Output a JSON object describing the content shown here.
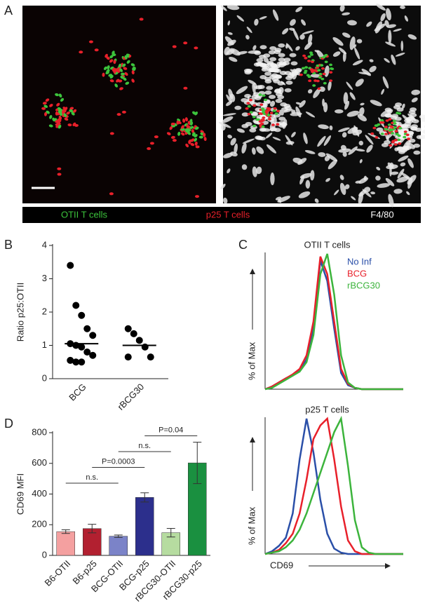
{
  "panel_labels": [
    "A",
    "B",
    "C",
    "D"
  ],
  "panel_a": {
    "legend": [
      {
        "text": "OTII T cells",
        "color": "#3cc43c"
      },
      {
        "text": "p25 T cells",
        "color": "#e8202a"
      },
      {
        "text": "F4/80",
        "color": "#ffffff"
      }
    ]
  },
  "chart_data": [
    {
      "type": "strip",
      "ylabel": "Ratio p25:OTII",
      "categories": [
        "BCG",
        "rBCG30"
      ],
      "groups": [
        [
          3.4,
          2.2,
          1.9,
          1.5,
          1.3,
          1.05,
          1.0,
          0.95,
          0.8,
          0.7,
          0.55,
          0.5,
          0.5
        ],
        [
          1.5,
          1.35,
          1.15,
          0.95,
          0.65,
          0.65
        ]
      ],
      "means": [
        1.05,
        1.0
      ],
      "color": "#000000",
      "ylim": [
        0,
        4
      ],
      "yticks": [
        0,
        1,
        2,
        3,
        4
      ]
    },
    {
      "type": "line",
      "title": "OTII T cells",
      "ylabel": "% of Max",
      "xlim": [
        0,
        20
      ],
      "ylim": [
        0,
        100
      ],
      "legend": true,
      "x": [
        0,
        1,
        2,
        3,
        4,
        5,
        6,
        7,
        8,
        9,
        10,
        11,
        12,
        13,
        14,
        15,
        16,
        17,
        18,
        19,
        20
      ],
      "series": [
        {
          "name": "No Inf",
          "color": "#2a4fa8",
          "values": [
            0,
            2,
            5,
            8,
            10,
            14,
            22,
            45,
            95,
            80,
            45,
            12,
            3,
            1,
            0,
            0,
            0,
            0,
            0,
            0,
            0
          ]
        },
        {
          "name": "BCG",
          "color": "#e8202a",
          "values": [
            0,
            2,
            5,
            8,
            11,
            15,
            25,
            50,
            98,
            85,
            50,
            15,
            4,
            1,
            0,
            0,
            0,
            0,
            0,
            0,
            0
          ]
        },
        {
          "name": "rBCG30",
          "color": "#3cb43c",
          "values": [
            0,
            1,
            4,
            7,
            10,
            13,
            20,
            40,
            85,
            100,
            70,
            25,
            5,
            1,
            0,
            0,
            0,
            0,
            0,
            0,
            0
          ]
        }
      ]
    },
    {
      "type": "line",
      "title": "p25 T cells",
      "ylabel": "% of Max",
      "xlabel": "CD69",
      "xlim": [
        0,
        20
      ],
      "ylim": [
        0,
        100
      ],
      "legend": false,
      "x": [
        0,
        1,
        2,
        3,
        4,
        5,
        6,
        7,
        8,
        9,
        10,
        11,
        12,
        13,
        14,
        15,
        16,
        17,
        18,
        19,
        20
      ],
      "series": [
        {
          "color": "#2a4fa8",
          "values": [
            0,
            2,
            6,
            12,
            30,
            70,
            100,
            75,
            40,
            15,
            4,
            1,
            0,
            0,
            0,
            0,
            0,
            0,
            0,
            0,
            0
          ]
        },
        {
          "color": "#e8202a",
          "values": [
            0,
            1,
            3,
            8,
            15,
            30,
            55,
            85,
            95,
            100,
            70,
            35,
            10,
            2,
            0,
            0,
            0,
            0,
            0,
            0,
            0
          ]
        },
        {
          "color": "#3cb43c",
          "values": [
            0,
            1,
            2,
            5,
            10,
            18,
            30,
            45,
            60,
            75,
            90,
            100,
            65,
            25,
            5,
            1,
            0,
            0,
            0,
            0,
            0
          ]
        }
      ]
    },
    {
      "type": "bar",
      "ylabel": "CD69 MFI",
      "categories": [
        "B6-OTII",
        "B6-p25",
        "BCG-OTII",
        "BCG-p25",
        "rBCG30-OTII",
        "rBCG30-p25"
      ],
      "values": [
        155,
        175,
        125,
        378,
        148,
        603
      ],
      "errors": [
        12,
        28,
        8,
        30,
        28,
        135
      ],
      "colors": [
        "#f4a0a0",
        "#b22030",
        "#7b83c8",
        "#2c2f8c",
        "#b6dca0",
        "#1a9040"
      ],
      "ylim": [
        0,
        800
      ],
      "yticks": [
        0,
        200,
        400,
        600,
        800
      ],
      "comparisons": [
        {
          "label": "n.s.",
          "from": 0,
          "to": 2
        },
        {
          "label": "P=0.0003",
          "from": 1,
          "to": 3
        },
        {
          "label": "n.s.",
          "from": 2,
          "to": 4
        },
        {
          "label": "P=0.04",
          "from": 3,
          "to": 5
        }
      ]
    }
  ]
}
